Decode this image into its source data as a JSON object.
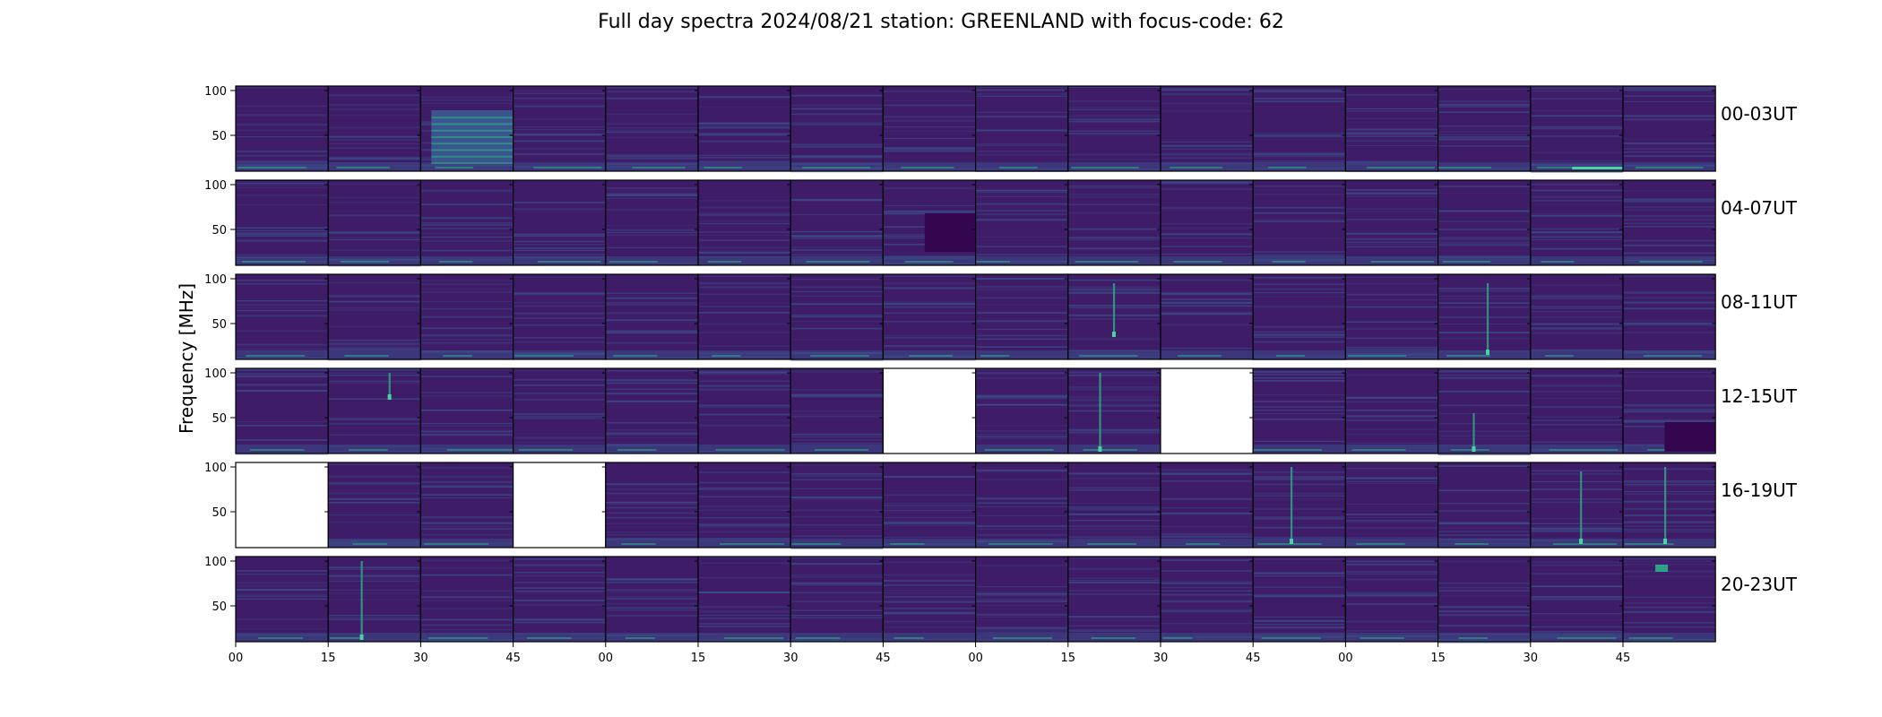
{
  "figure": {
    "title": "Full day spectra 2024/08/21 station: GREENLAND with focus-code: 62",
    "ylabel": "Frequency [MHz]"
  },
  "colors": {
    "base": "#3f1c68",
    "band": "#3b4f8a",
    "band_bright": "#2fa38a",
    "hot": "#49d3a0",
    "dark_patch": "#33064f",
    "empty": "#ffffff"
  },
  "chart_data": {
    "type": "heatmap",
    "colormap": "viridis",
    "grid": false,
    "rows": [
      "00-03UT",
      "04-07UT",
      "08-11UT",
      "12-15UT",
      "16-19UT",
      "20-23UT"
    ],
    "panels_per_row": 16,
    "panel_minutes": 15,
    "x_tick_labels": [
      "00",
      "15",
      "30",
      "45",
      "00",
      "15",
      "30",
      "45",
      "00",
      "15",
      "30",
      "45",
      "00",
      "15",
      "30",
      "45"
    ],
    "y_ticks": [
      50,
      100
    ],
    "ylim": [
      10,
      105
    ],
    "missing_panels": [
      {
        "row": "12-15UT",
        "panel": 7
      },
      {
        "row": "12-15UT",
        "panel": 10
      },
      {
        "row": "16-19UT",
        "panel": 0
      },
      {
        "row": "16-19UT",
        "panel": 3
      }
    ],
    "features": [
      {
        "row": "00-03UT",
        "panel": 2,
        "type": "broadband-block",
        "freq_range": [
          20,
          78
        ]
      },
      {
        "row": "00-03UT",
        "panel": 14,
        "type": "low-band-bright",
        "freq": 14
      },
      {
        "row": "04-07UT",
        "panel": 7,
        "type": "dark-block",
        "freq_range": [
          25,
          68
        ]
      },
      {
        "row": "08-11UT",
        "panel": 9,
        "type": "burst",
        "freq_range": [
          35,
          95
        ]
      },
      {
        "row": "08-11UT",
        "panel": 13,
        "type": "burst",
        "freq_range": [
          15,
          95
        ]
      },
      {
        "row": "12-15UT",
        "panel": 1,
        "type": "burst",
        "freq_range": [
          70,
          100
        ]
      },
      {
        "row": "12-15UT",
        "panel": 9,
        "type": "burst",
        "freq_range": [
          12,
          100
        ]
      },
      {
        "row": "12-15UT",
        "panel": 13,
        "type": "burst",
        "freq_range": [
          12,
          55
        ]
      },
      {
        "row": "12-15UT",
        "panel": 15,
        "type": "dark-block",
        "freq_range": [
          12,
          45
        ]
      },
      {
        "row": "16-19UT",
        "panel": 11,
        "type": "burst",
        "freq_range": [
          14,
          100
        ]
      },
      {
        "row": "16-19UT",
        "panel": 14,
        "type": "burst",
        "freq_range": [
          14,
          95
        ]
      },
      {
        "row": "16-19UT",
        "panel": 15,
        "type": "burst",
        "freq_range": [
          14,
          100
        ]
      },
      {
        "row": "20-23UT",
        "panel": 1,
        "type": "burst",
        "freq_range": [
          12,
          100
        ]
      },
      {
        "row": "20-23UT",
        "panel": 15,
        "type": "bright-patch",
        "freq_range": [
          88,
          96
        ]
      }
    ]
  }
}
